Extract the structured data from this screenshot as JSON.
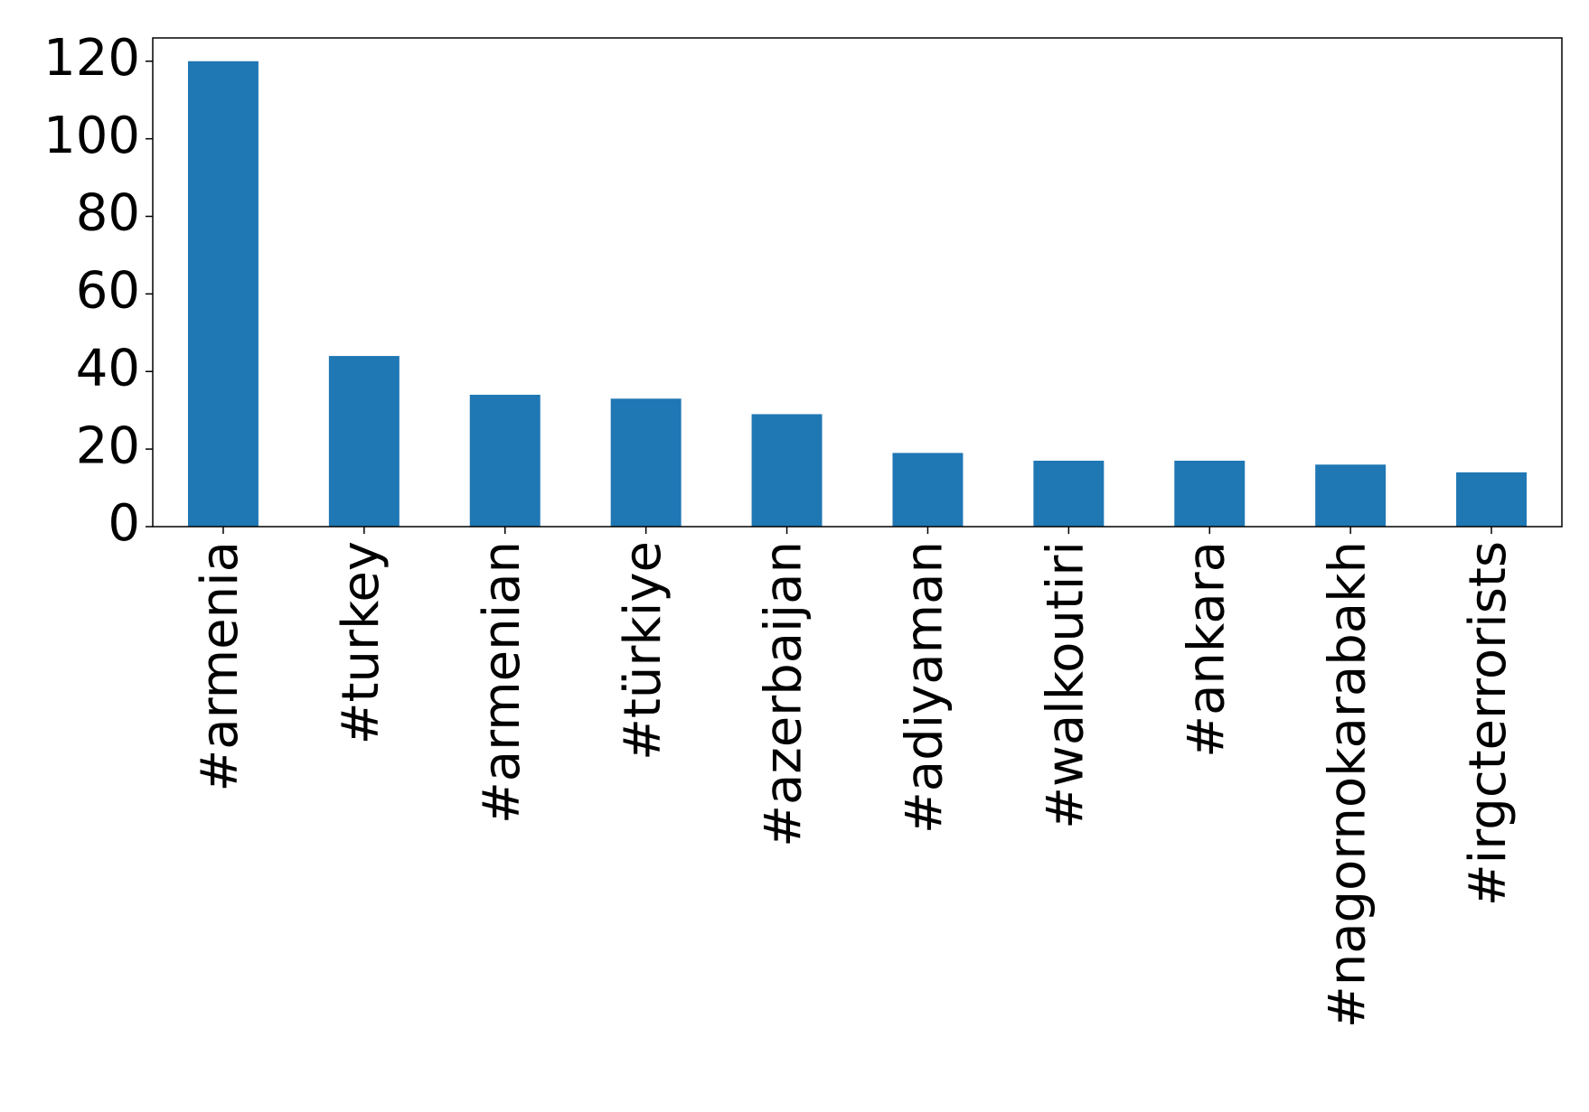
{
  "chart_data": {
    "type": "bar",
    "categories": [
      "#armenia",
      "#turkey",
      "#armenian",
      "#türkiye",
      "#azerbaijan",
      "#adiyaman",
      "#walkoutiri",
      "#ankara",
      "#nagornokarabakh",
      "#irgcterrorists"
    ],
    "values": [
      120,
      44,
      34,
      33,
      29,
      19,
      17,
      17,
      16,
      14
    ],
    "color": "#1f77b4",
    "ylim": [
      0,
      126
    ],
    "yticks": [
      0,
      20,
      40,
      60,
      80,
      100,
      120
    ],
    "grid": false
  }
}
